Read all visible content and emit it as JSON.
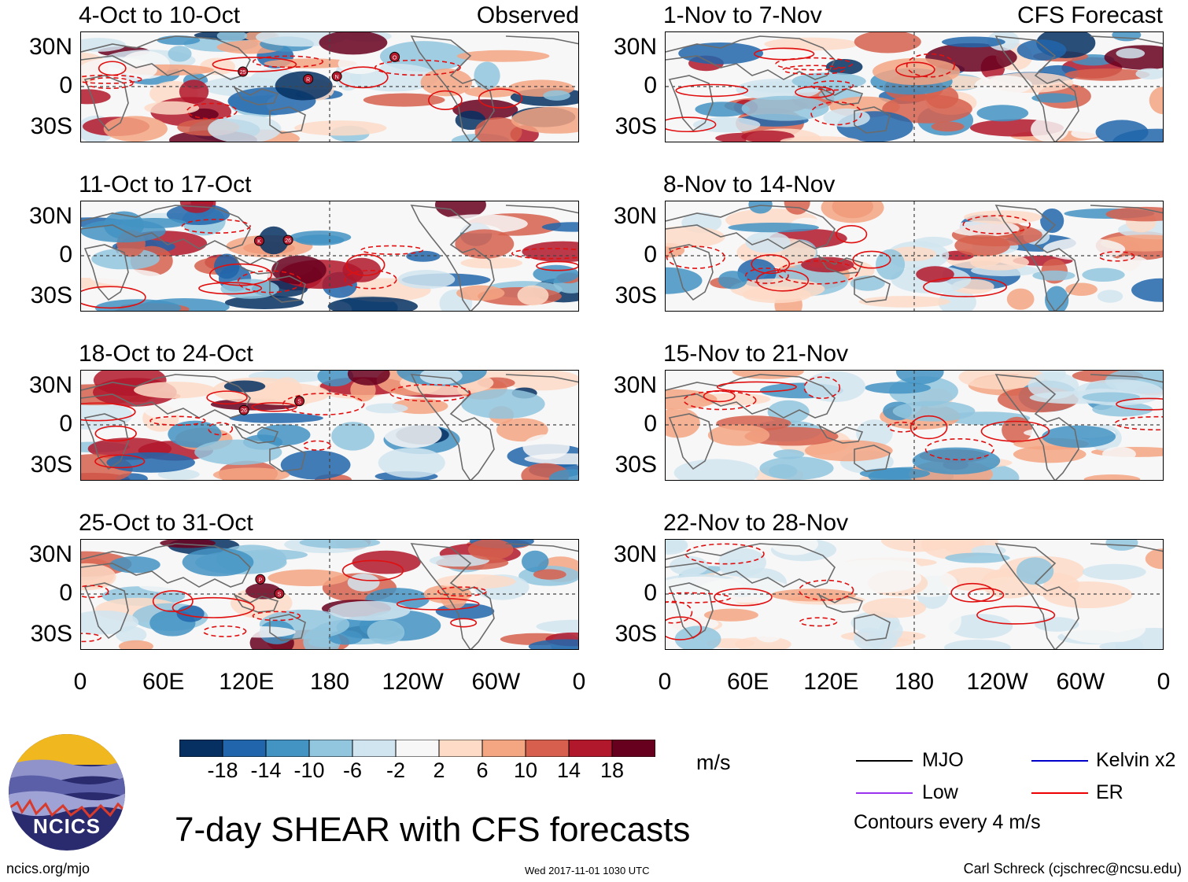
{
  "header": {
    "observed_label": "Observed",
    "forecast_label": "CFS Forecast"
  },
  "panels_left": [
    {
      "title": "4-Oct to 10-Oct",
      "storms": [
        "25",
        "R",
        "N",
        "O"
      ]
    },
    {
      "title": "11-Oct to 17-Oct",
      "storms": [
        "K",
        "26"
      ]
    },
    {
      "title": "18-Oct to 24-Oct",
      "storms": [
        "26",
        "S"
      ]
    },
    {
      "title": "25-Oct to 31-Oct",
      "storms": [
        "P",
        "S"
      ]
    }
  ],
  "panels_right": [
    {
      "title": "1-Nov to 7-Nov"
    },
    {
      "title": "8-Nov to 14-Nov"
    },
    {
      "title": "15-Nov to 21-Nov"
    },
    {
      "title": "22-Nov to 28-Nov"
    }
  ],
  "y_axis_labels": [
    "30N",
    "0",
    "30S"
  ],
  "x_axis_labels": [
    "0",
    "60E",
    "120E",
    "180",
    "120W",
    "60W",
    "0"
  ],
  "colorbar": {
    "ticks": [
      "-18",
      "-14",
      "-10",
      "-6",
      "-2",
      "2",
      "6",
      "10",
      "14",
      "18"
    ],
    "colors": [
      "#053061",
      "#2166ac",
      "#4393c3",
      "#92c5de",
      "#d1e5f0",
      "#f7f7f7",
      "#fddbc7",
      "#f4a582",
      "#d6604d",
      "#b2182b",
      "#67001f"
    ],
    "units": "m/s"
  },
  "legend": {
    "items": [
      {
        "label": "MJO",
        "color": "#000000"
      },
      {
        "label": "Kelvin x2",
        "color": "#0000cc"
      },
      {
        "label": "Low",
        "color": "#9933ee"
      },
      {
        "label": "ER",
        "color": "#ee0000"
      }
    ],
    "note": "Contours every 4 m/s"
  },
  "logo_text": "NCICS",
  "main_title": "7-day SHEAR with CFS forecasts",
  "footer": {
    "left": "ncics.org/mjo",
    "center": "Wed 2017-11-01 1030 UTC",
    "right": "Carl Schreck (cjschrec@ncsu.edu)"
  }
}
